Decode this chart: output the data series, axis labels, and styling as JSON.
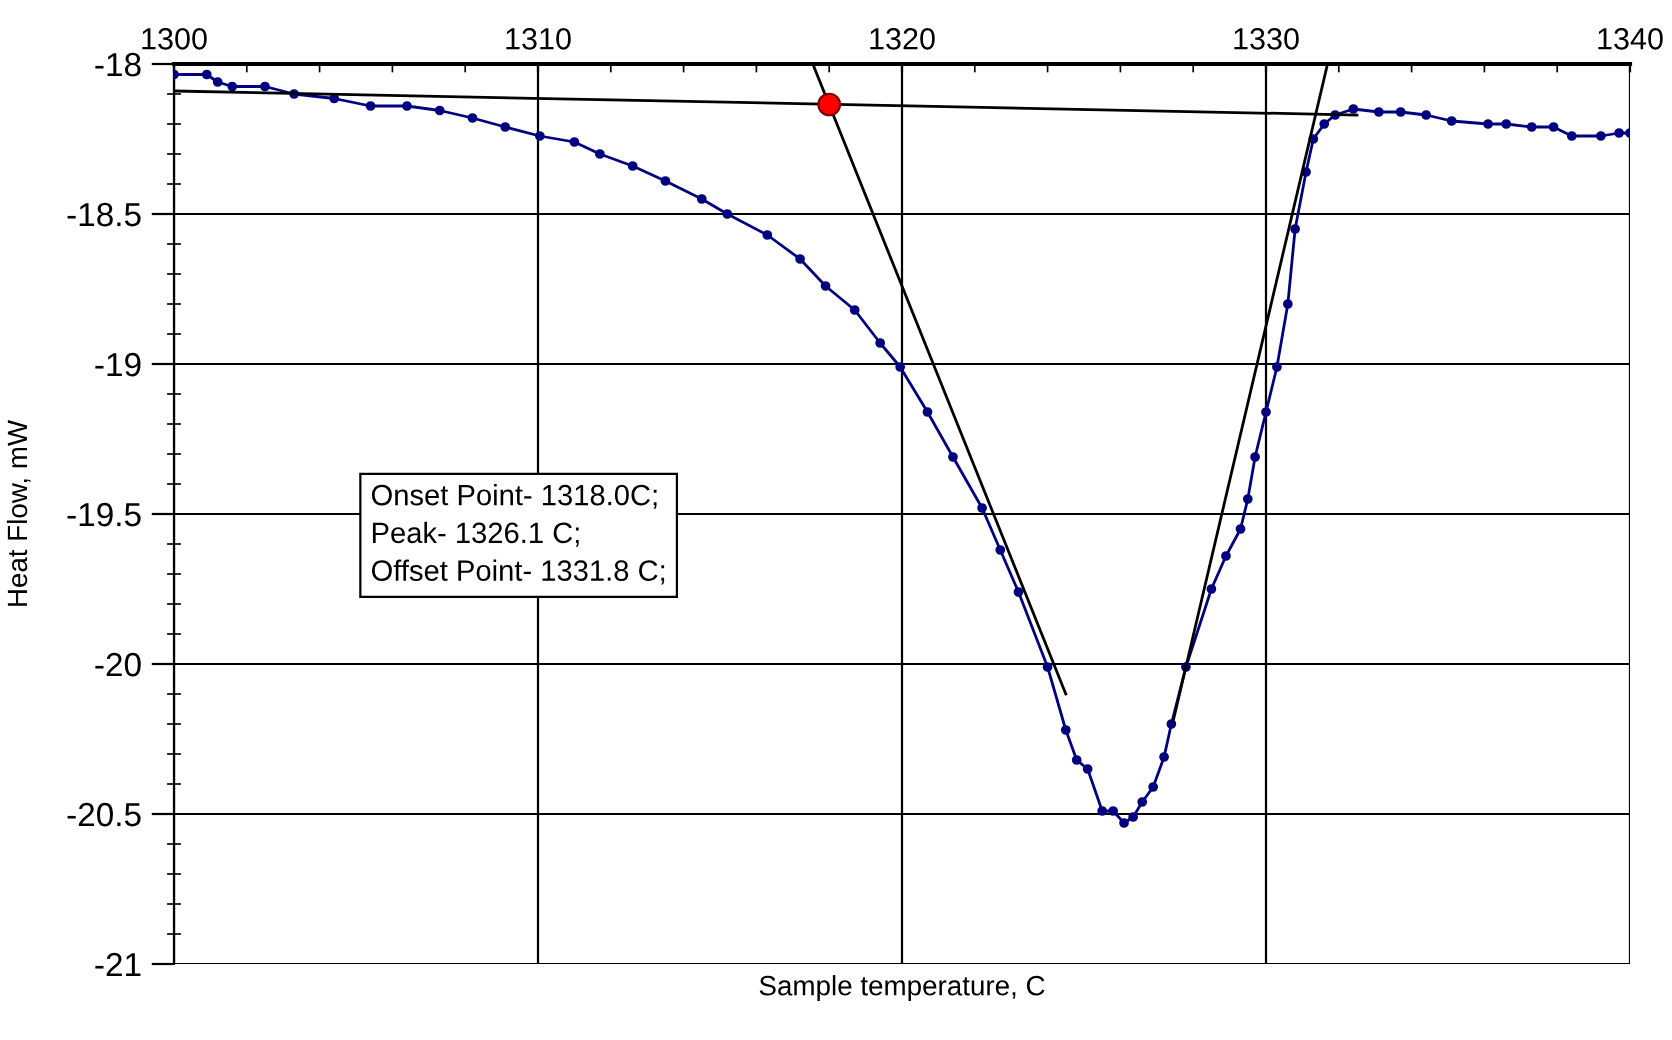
{
  "chart_data": {
    "type": "line",
    "xlabel": "Sample temperature, C",
    "ylabel": "Heat Flow, mW",
    "xlim": [
      1300,
      1340
    ],
    "xticks": [
      1300,
      1310,
      1320,
      1330,
      1340
    ],
    "ylim": [
      -21,
      -18
    ],
    "yticks": [
      -18,
      -18.5,
      -19,
      -19.5,
      -20,
      -20.5,
      -21
    ],
    "grid": true,
    "legend": false,
    "annotations": [
      "Onset Point- 1318.0C;",
      "Peak- 1326.1 C;",
      "Offset Point- 1331.8 C;"
    ],
    "series": [
      {
        "type": "line",
        "color": "#000080",
        "marker": "circle",
        "x": [
          1300,
          1300.9,
          1301.2,
          1301.6,
          1302.5,
          1303.3,
          1304.4,
          1305.4,
          1306.4,
          1307.3,
          1308.2,
          1309.1,
          1310.05,
          1311,
          1311.7,
          1312.6,
          1313.5,
          1314.5,
          1315.2,
          1316.3,
          1317.2,
          1317.9,
          1318.7,
          1319.4,
          1319.95,
          1320.7,
          1321.4,
          1322.2,
          1322.7,
          1323.2,
          1324.0,
          1324.5,
          1324.8,
          1325.1,
          1325.5,
          1325.8,
          1326.1,
          1326.35,
          1326.6,
          1326.9,
          1327.2,
          1327.4,
          1327.8,
          1328.5,
          1328.9,
          1329.3,
          1329.5,
          1329.7,
          1330.0,
          1330.3,
          1330.6,
          1330.8,
          1331.1,
          1331.3,
          1331.6,
          1331.9,
          1332.4,
          1333.1,
          1333.7,
          1334.4,
          1335.1,
          1336.1,
          1336.6,
          1337.3,
          1337.9,
          1338.4,
          1339.2,
          1339.7,
          1340
        ],
        "values": [
          -18.035,
          -18.035,
          -18.06,
          -18.075,
          -18.075,
          -18.1,
          -18.115,
          -18.14,
          -18.14,
          -18.155,
          -18.18,
          -18.21,
          -18.24,
          -18.26,
          -18.3,
          -18.34,
          -18.39,
          -18.45,
          -18.5,
          -18.57,
          -18.65,
          -18.74,
          -18.82,
          -18.93,
          -19.01,
          -19.16,
          -19.31,
          -19.48,
          -19.62,
          -19.76,
          -20.01,
          -20.22,
          -20.32,
          -20.35,
          -20.49,
          -20.49,
          -20.53,
          -20.51,
          -20.46,
          -20.41,
          -20.31,
          -20.2,
          -20.01,
          -19.75,
          -19.64,
          -19.55,
          -19.45,
          -19.31,
          -19.16,
          -19.01,
          -18.8,
          -18.55,
          -18.36,
          -18.25,
          -18.2,
          -18.17,
          -18.15,
          -18.16,
          -18.16,
          -18.17,
          -18.19,
          -18.2,
          -18.2,
          -18.21,
          -18.21,
          -18.24,
          -18.24,
          -18.23,
          -18.23
        ]
      },
      {
        "type": "line",
        "color": "#000000",
        "marker": "none",
        "x": [
          1300,
          1332.5
        ],
        "values": [
          -18.09,
          -18.17
        ]
      },
      {
        "type": "line",
        "color": "#000000",
        "marker": "none",
        "x": [
          1317.55,
          1324.5
        ],
        "values": [
          -18.0,
          -20.1
        ]
      },
      {
        "type": "line",
        "color": "#000000",
        "marker": "none",
        "x": [
          1327.45,
          1331.69
        ],
        "values": [
          -20.19,
          -18.0
        ]
      },
      {
        "type": "scatter",
        "color": "#ff0000",
        "marker": "circle",
        "x": [
          1318.0
        ],
        "values": [
          -18.135
        ]
      }
    ]
  }
}
